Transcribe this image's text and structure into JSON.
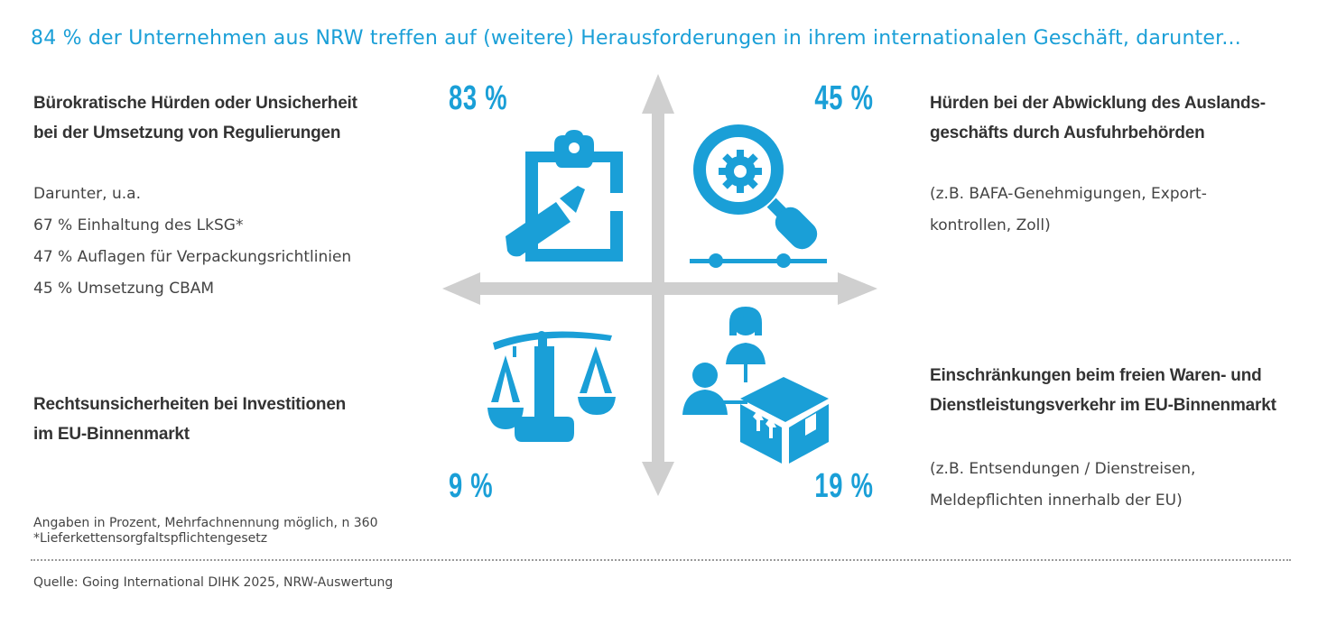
{
  "title": "84 % der Unternehmen aus NRW treffen auf (weitere) Herausforderungen in ihrem internationalen Geschäft, darunter...",
  "quadrants": {
    "top_left": {
      "percent": "83 %",
      "heading_line1": "Bürokratische Hürden oder Unsicherheit",
      "heading_line2": "bei der Umsetzung von Regulierungen",
      "details": [
        "Darunter, u.a.",
        "67 % Einhaltung des LkSG*",
        "47 % Auflagen für Verpackungsrichtlinien",
        "45 % Umsetzung CBAM"
      ],
      "icon": "clipboard-pen-icon"
    },
    "top_right": {
      "percent": "45 %",
      "heading_line1": "Hürden bei der Abwicklung des Auslands-",
      "heading_line2": "geschäfts durch Ausfuhrbehörden",
      "details": [
        "(z.B. BAFA-Genehmigungen, Export-",
        "kontrollen, Zoll)"
      ],
      "icon": "magnifier-gear-icon"
    },
    "bottom_left": {
      "percent": "9 %",
      "heading_line1": "Rechtsunsicherheiten bei Investitionen",
      "heading_line2": "im EU-Binnenmarkt",
      "icon": "scales-icon"
    },
    "bottom_right": {
      "percent": "19 %",
      "heading_line1": "Einschränkungen beim freien Waren- und",
      "heading_line2": "Dienstleistungsverkehr im EU-Binnenmarkt",
      "details": [
        "(z.B. Entsendungen / Dienstreisen,",
        "Meldepflichten innerhalb der EU)"
      ],
      "icon": "people-box-icon"
    }
  },
  "footnote_1": "Angaben in Prozent, Mehrfachnennung möglich, n 360",
  "footnote_2": "*Lieferkettensorgfaltspflichtengesetz",
  "source": "Quelle: Going International DIHK 2025, NRW-Auswertung",
  "colors": {
    "accent": "#1a9fd7",
    "axis": "#cfcfcf",
    "text": "#3c3c3c"
  },
  "chart_data": {
    "type": "table",
    "categories": [
      "Bürokratische Hürden oder Unsicherheit bei der Umsetzung von Regulierungen",
      "Hürden bei der Abwicklung des Auslandsgeschäfts durch Ausfuhrbehörden",
      "Rechtsunsicherheiten bei Investitionen im EU-Binnenmarkt",
      "Einschränkungen beim freien Waren- und Dienstleistungsverkehr im EU-Binnenmarkt"
    ],
    "values": [
      83,
      45,
      9,
      19
    ],
    "sub_values": {
      "Einhaltung des LkSG*": 67,
      "Auflagen für Verpackungsrichtlinien": 47,
      "Umsetzung CBAM": 45
    },
    "overall_percent": 84
  }
}
